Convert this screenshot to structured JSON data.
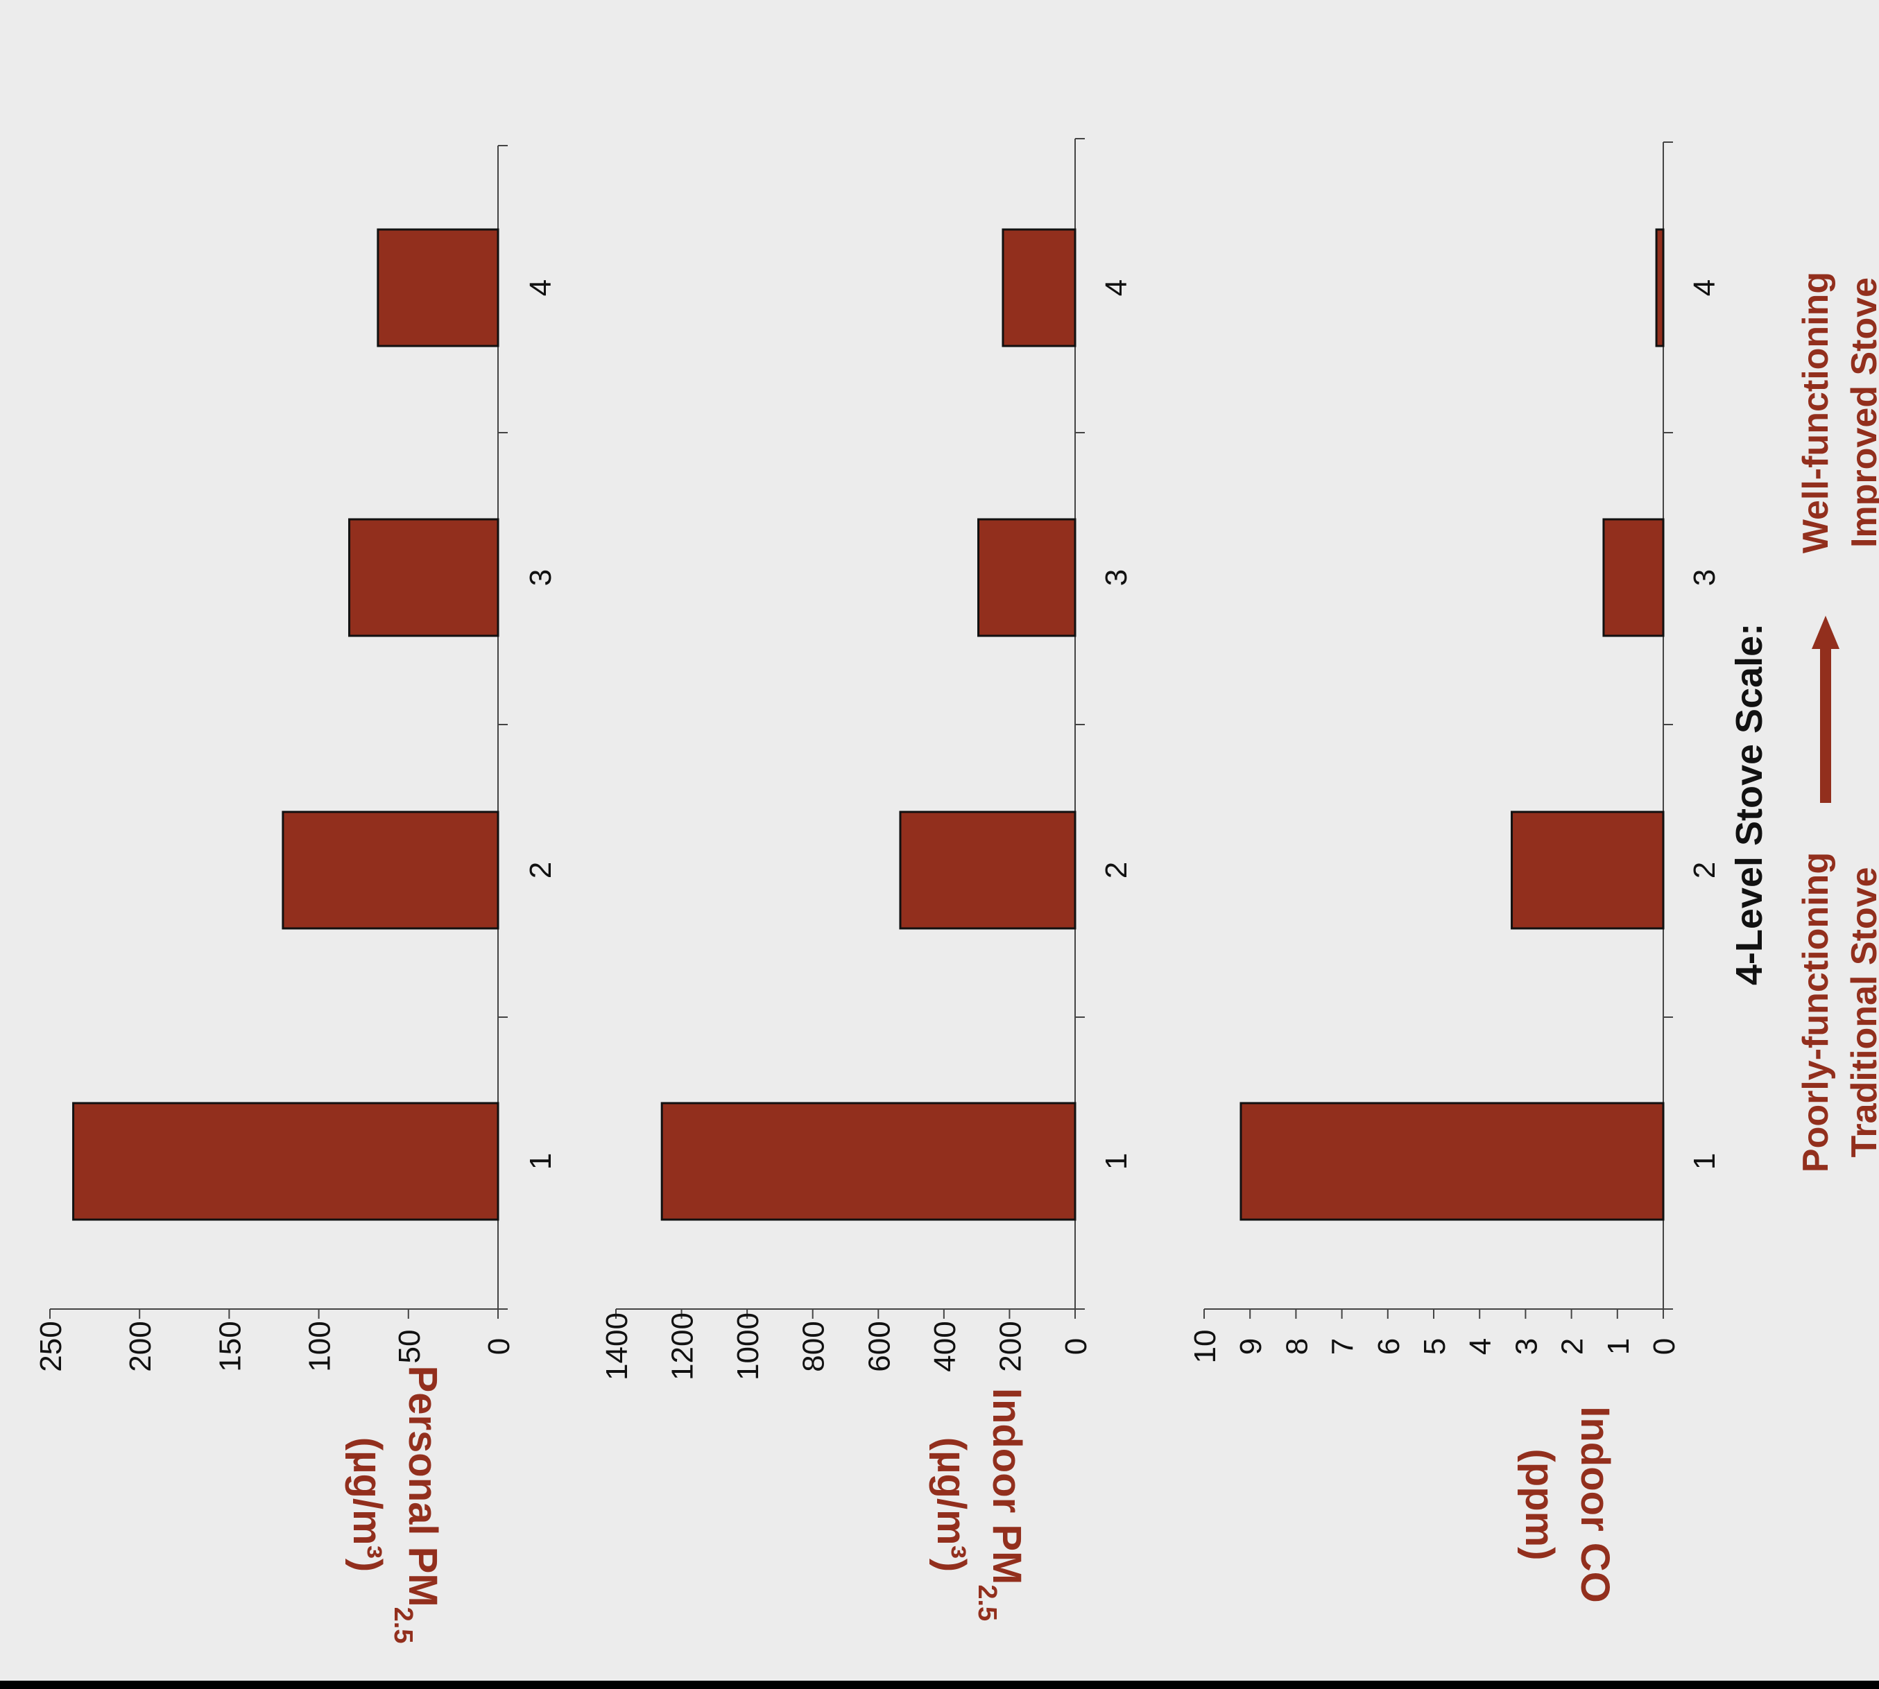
{
  "colors": {
    "bar_fill": "#922f1d",
    "bar_stroke": "#111111",
    "label_red": "#922f1d",
    "background": "#ececec"
  },
  "scale": {
    "title": "4-Level Stove Scale:",
    "low_line1": "Poorly-functioning",
    "low_line2": "Traditional Stove",
    "high_line1": "Well-functioning",
    "high_line2": "Improved Stove",
    "arrow_icon": "arrow-right-icon"
  },
  "chart_data": [
    {
      "type": "bar",
      "categories": [
        "1",
        "2",
        "3",
        "4"
      ],
      "values": [
        237,
        120,
        83,
        67
      ],
      "ylabel_main": "Personal PM",
      "ylabel_sub": "2.5",
      "ylabel_unit": "(µg/m³)",
      "ylim": [
        0,
        250
      ],
      "yticks": [
        0,
        50,
        100,
        150,
        200,
        250
      ]
    },
    {
      "type": "bar",
      "categories": [
        "1",
        "2",
        "3",
        "4"
      ],
      "values": [
        1260,
        533,
        295,
        220
      ],
      "ylabel_main": "Indoor PM",
      "ylabel_sub": "2.5",
      "ylabel_unit": "(µg/m³)",
      "ylim": [
        0,
        1400
      ],
      "yticks": [
        0,
        200,
        400,
        600,
        800,
        1000,
        1200,
        1400
      ]
    },
    {
      "type": "bar",
      "categories": [
        "1",
        "2",
        "3",
        "4"
      ],
      "values": [
        9.2,
        3.3,
        1.3,
        0.15
      ],
      "ylabel_main": "Indoor CO",
      "ylabel_sub": "",
      "ylabel_unit": "(ppm)",
      "ylim": [
        0,
        10
      ],
      "yticks": [
        0,
        1,
        2,
        3,
        4,
        5,
        6,
        7,
        8,
        9,
        10
      ]
    }
  ]
}
